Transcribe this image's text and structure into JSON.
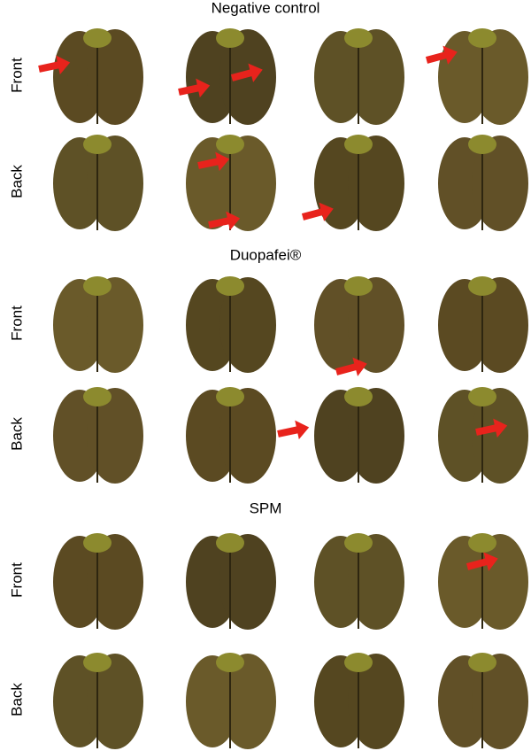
{
  "groups": [
    {
      "title": "Negative control",
      "rows": [
        {
          "label": "Front"
        },
        {
          "label": "Back"
        }
      ]
    },
    {
      "title": "Duopafei®",
      "rows": [
        {
          "label": "Front"
        },
        {
          "label": "Back"
        }
      ]
    },
    {
      "title": "SPM",
      "rows": [
        {
          "label": "Front"
        },
        {
          "label": "Back"
        }
      ]
    }
  ]
}
